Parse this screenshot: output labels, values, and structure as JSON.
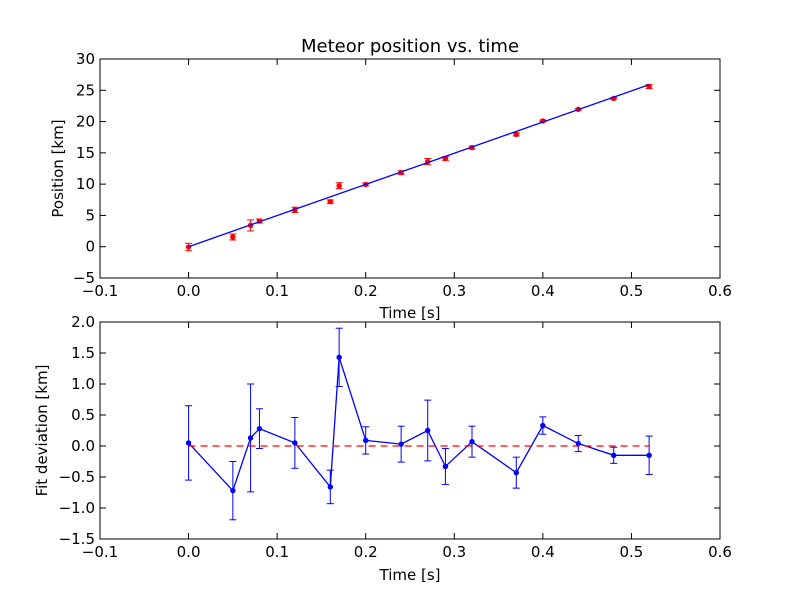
{
  "chart_data": [
    {
      "type": "scatter",
      "title": "Meteor position vs. time",
      "xlabel": "Time [s]",
      "ylabel": "Position [km]",
      "xlim": [
        -0.1,
        0.6
      ],
      "ylim": [
        -5,
        30
      ],
      "xticks": [
        -0.1,
        0.0,
        0.1,
        0.2,
        0.3,
        0.4,
        0.5,
        0.6
      ],
      "xtick_labels": [
        "−0.1",
        "0.0",
        "0.1",
        "0.2",
        "0.3",
        "0.4",
        "0.5",
        "0.6"
      ],
      "yticks": [
        -5,
        0,
        5,
        10,
        15,
        20,
        25,
        30
      ],
      "ytick_labels": [
        "−5",
        "0",
        "5",
        "10",
        "15",
        "20",
        "25",
        "30"
      ],
      "grid": false,
      "series": [
        {
          "kind": "points-with-errorbars",
          "color": "#ff0000",
          "x": [
            0.0,
            0.05,
            0.07,
            0.08,
            0.12,
            0.16,
            0.17,
            0.2,
            0.24,
            0.27,
            0.29,
            0.32,
            0.37,
            0.4,
            0.44,
            0.48,
            0.52
          ],
          "y": [
            -0.05,
            1.55,
            3.4,
            4.1,
            5.9,
            7.2,
            9.75,
            9.95,
            11.85,
            13.6,
            14.1,
            15.85,
            17.95,
            20.1,
            21.95,
            23.7,
            25.6
          ],
          "yerr": [
            0.6,
            0.47,
            0.88,
            0.32,
            0.42,
            0.27,
            0.47,
            0.22,
            0.29,
            0.5,
            0.29,
            0.25,
            0.25,
            0.15,
            0.13,
            0.13,
            0.31
          ]
        },
        {
          "kind": "fit-line",
          "color": "#0000ff",
          "x": [
            0.0,
            0.52
          ],
          "y": [
            0.0,
            25.9
          ]
        }
      ]
    },
    {
      "type": "line",
      "title": "",
      "xlabel": "Time [s]",
      "ylabel": "Fit deviation [km]",
      "xlim": [
        -0.1,
        0.6
      ],
      "ylim": [
        -1.5,
        2.0
      ],
      "xticks": [
        -0.1,
        0.0,
        0.1,
        0.2,
        0.3,
        0.4,
        0.5,
        0.6
      ],
      "xtick_labels": [
        "−0.1",
        "0.0",
        "0.1",
        "0.2",
        "0.3",
        "0.4",
        "0.5",
        "0.6"
      ],
      "yticks": [
        -1.5,
        -1.0,
        -0.5,
        0.0,
        0.5,
        1.0,
        1.5,
        2.0
      ],
      "ytick_labels": [
        "−1.5",
        "−1.0",
        "−0.5",
        "0.0",
        "0.5",
        "1.0",
        "1.5",
        "2.0"
      ],
      "grid": false,
      "series": [
        {
          "kind": "line-with-errorbars",
          "color": "#0000ff",
          "x": [
            0.0,
            0.05,
            0.07,
            0.08,
            0.12,
            0.16,
            0.17,
            0.2,
            0.24,
            0.27,
            0.29,
            0.32,
            0.37,
            0.4,
            0.44,
            0.48,
            0.52
          ],
          "y": [
            0.05,
            -0.72,
            0.13,
            0.28,
            0.05,
            -0.66,
            1.43,
            0.09,
            0.03,
            0.25,
            -0.33,
            0.07,
            -0.43,
            0.33,
            0.04,
            -0.15,
            -0.15
          ],
          "yerr": [
            0.6,
            0.47,
            0.87,
            0.32,
            0.41,
            0.27,
            0.47,
            0.22,
            0.29,
            0.49,
            0.29,
            0.25,
            0.25,
            0.14,
            0.13,
            0.13,
            0.31
          ]
        },
        {
          "kind": "zero-line",
          "color": "#ff0000",
          "dashed": true,
          "x": [
            0.0,
            0.52
          ],
          "y": [
            0.0,
            0.0
          ]
        }
      ]
    }
  ]
}
